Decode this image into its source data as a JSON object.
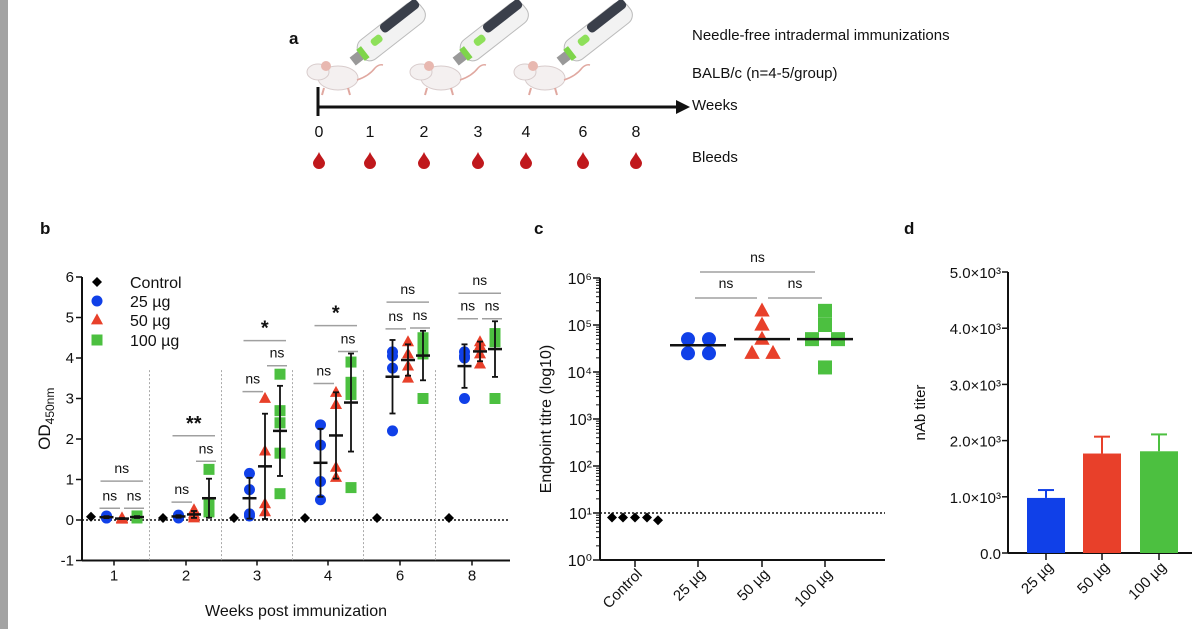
{
  "panel_labels": {
    "a": "a",
    "b": "b",
    "c": "c",
    "d": "d"
  },
  "colors": {
    "control": "#000000",
    "25ug": "#1040e8",
    "50ug": "#e8402a",
    "100ug": "#4cc040",
    "bracket": "#a0a0a0",
    "blood": "#c0181c"
  },
  "panel_a": {
    "protocol": "Needle-free intradermal immunizations",
    "mice": "BALB/c (n=4-5/group)",
    "axis_label": "Weeks",
    "bleeds_label": "Bleeds",
    "timepoints": [
      "0",
      "1",
      "2",
      "3",
      "4",
      "6",
      "8"
    ],
    "immunization_weeks": [
      "0",
      "2",
      "4"
    ]
  },
  "chart_data": [
    {
      "panel": "b",
      "type": "scatter",
      "xlabel": "Weeks post immunization",
      "ylabel": "OD",
      "ylabel_sub": "450nm",
      "ylim": [
        -1,
        6
      ],
      "yticks": [
        "-1",
        "0",
        "1",
        "2",
        "3",
        "4",
        "5",
        "6"
      ],
      "categories": [
        "1",
        "2",
        "3",
        "4",
        "6",
        "8"
      ],
      "baseline": 0,
      "legend_position": "top-left",
      "series": [
        {
          "name": "Control",
          "marker": "diamond",
          "values": [
            [
              0.08
            ],
            [
              0.05
            ],
            [
              0.05
            ],
            [
              0.05
            ],
            [
              0.05
            ],
            [
              0.05
            ]
          ]
        },
        {
          "name": "25 µg",
          "marker": "circle",
          "values": [
            [
              0.05,
              0.08,
              0.1,
              0.05
            ],
            [
              0.05,
              0.1,
              0.08,
              0.12
            ],
            [
              0.1,
              0.15,
              0.75,
              1.15
            ],
            [
              0.5,
              0.95,
              1.85,
              2.35
            ],
            [
              2.2,
              3.75,
              4.05,
              4.15
            ],
            [
              3.0,
              4.0,
              4.05,
              4.15
            ]
          ]
        },
        {
          "name": "50 µg",
          "marker": "triangle",
          "values": [
            [
              0.03,
              0.05,
              0.02,
              0.04
            ],
            [
              0.05,
              0.1,
              0.15,
              0.25
            ],
            [
              0.2,
              0.4,
              1.7,
              3.0
            ],
            [
              1.05,
              1.3,
              2.85,
              3.15
            ],
            [
              3.5,
              3.8,
              4.1,
              4.4
            ],
            [
              3.85,
              4.1,
              4.3,
              4.4
            ]
          ]
        },
        {
          "name": "100 µg",
          "marker": "square",
          "values": [
            [
              0.05,
              0.1,
              0.08,
              0.06
            ],
            [
              0.2,
              0.3,
              0.4,
              1.25
            ],
            [
              0.65,
              1.65,
              2.4,
              2.7,
              3.6
            ],
            [
              0.8,
              3.1,
              3.3,
              3.4,
              3.9
            ],
            [
              3.0,
              4.1,
              4.3,
              4.4,
              4.5
            ],
            [
              3.0,
              4.4,
              4.5,
              4.6,
              4.6
            ]
          ]
        }
      ],
      "significance": [
        {
          "top": {
            "label": "ns",
            "y": 0.96
          },
          "left": {
            "label": "ns",
            "y": 0.29
          },
          "right": {
            "label": "ns",
            "y": 0.29
          }
        },
        {
          "top": {
            "label": "**",
            "y": 2.08
          },
          "left": {
            "label": "ns",
            "y": 0.44
          },
          "right": {
            "label": "ns",
            "y": 1.45
          }
        },
        {
          "top": {
            "label": "*",
            "y": 4.43
          },
          "left": {
            "label": "ns",
            "y": 3.17
          },
          "right": {
            "label": "ns",
            "y": 3.81
          }
        },
        {
          "top": {
            "label": "*",
            "y": 4.8
          },
          "left": {
            "label": "ns",
            "y": 3.37
          },
          "right": {
            "label": "ns",
            "y": 4.16
          }
        },
        {
          "top": {
            "label": "ns",
            "y": 5.38
          },
          "left": {
            "label": "ns",
            "y": 4.72
          },
          "right": {
            "label": "ns",
            "y": 4.74
          }
        },
        {
          "top": {
            "label": "ns",
            "y": 5.6
          },
          "left": {
            "label": "ns",
            "y": 4.97
          },
          "right": {
            "label": "ns",
            "y": 4.97
          }
        }
      ]
    },
    {
      "panel": "c",
      "type": "scatter",
      "ylabel": "Endpoint titre (log10)",
      "yscale": "log",
      "ylim": [
        1,
        1000000
      ],
      "yticks": [
        "10⁰",
        "10¹",
        "10²",
        "10³",
        "10⁴",
        "10⁵",
        "10⁶"
      ],
      "detection_limit": 10,
      "categories": [
        "Control",
        "25 µg",
        "50 µg",
        "100 µg"
      ],
      "values": [
        [
          8,
          8,
          8,
          8,
          7
        ],
        [
          50000,
          25000,
          50000,
          25000
        ],
        [
          200000,
          100000,
          50000,
          25000,
          25000
        ],
        [
          200000,
          100000,
          50000,
          50000,
          12500
        ]
      ],
      "medians": [
        null,
        37000,
        50000,
        50000
      ],
      "significance": [
        {
          "label": "ns",
          "from": "25 µg",
          "to": "100 µg"
        },
        {
          "label": "ns",
          "from": "25 µg",
          "to": "50 µg"
        },
        {
          "label": "ns",
          "from": "50 µg",
          "to": "100 µg"
        }
      ]
    },
    {
      "panel": "d",
      "type": "bar",
      "ylabel": "nAb titer",
      "ylim": [
        0,
        5000
      ],
      "yticks": [
        "0.0",
        "1.0×10³",
        "2.0×10³",
        "3.0×10³",
        "4.0×10³",
        "5.0×10³"
      ],
      "categories": [
        "25 µg",
        "50 µg",
        "100 µg"
      ],
      "values": [
        980,
        1770,
        1810
      ],
      "error_upper": [
        1120,
        2070,
        2110
      ]
    }
  ]
}
